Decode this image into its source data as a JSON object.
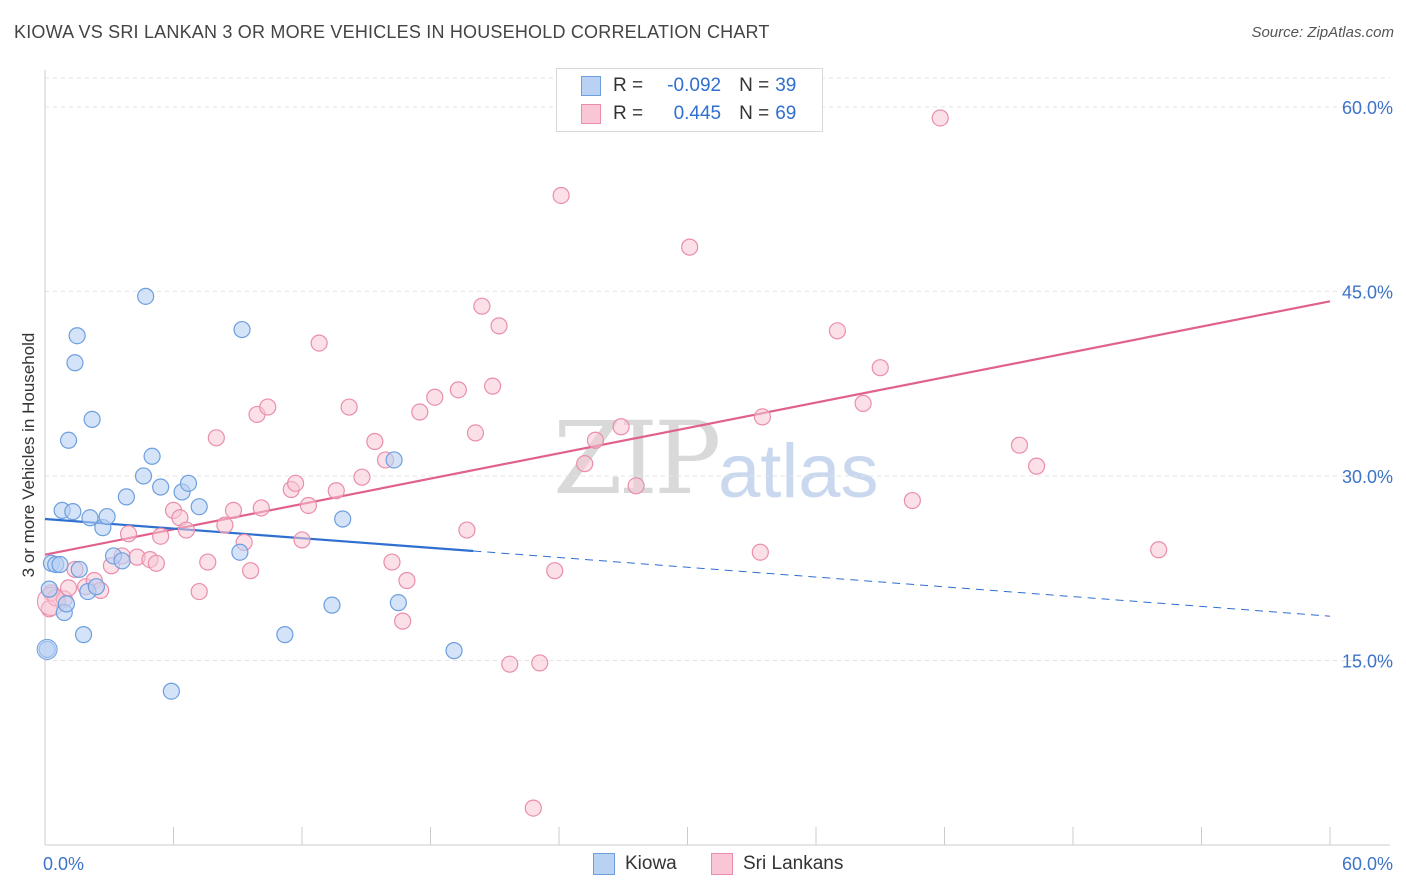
{
  "title": "KIOWA VS SRI LANKAN 3 OR MORE VEHICLES IN HOUSEHOLD CORRELATION CHART",
  "source": "Source: ZipAtlas.com",
  "watermark": {
    "zip": "ZIP",
    "atlas": "atlas"
  },
  "legend": {
    "r_label": "R =",
    "n_label": "N =",
    "kiowa": {
      "r": "-0.092",
      "n": "39"
    },
    "srilankan": {
      "r": "0.445",
      "n": "69"
    }
  },
  "bottom_legend": {
    "kiowa": "Kiowa",
    "srilankan": "Sri Lankans"
  },
  "colors": {
    "kiowa_fill": "#b9d1f3",
    "kiowa_stroke": "#6d9fdf",
    "kiowa_line": "#2e6fd0",
    "sri_fill": "#f8c6d5",
    "sri_stroke": "#ea8eab",
    "sri_line": "#e0628b",
    "axis_text": "#3d73c9"
  },
  "chart_data": {
    "type": "scatter",
    "title": "KIOWA VS SRI LANKAN 3 OR MORE VEHICLES IN HOUSEHOLD CORRELATION CHART",
    "xlabel": "",
    "ylabel": "3 or more Vehicles in Household",
    "xlim": [
      0,
      60
    ],
    "ylim": [
      0,
      63
    ],
    "x_tick_labels": [
      "0.0%",
      "60.0%"
    ],
    "y_ticks": [
      15,
      30,
      45,
      60
    ],
    "y_tick_labels": [
      "15.0%",
      "30.0%",
      "45.0%",
      "60.0%"
    ],
    "series": [
      {
        "name": "Kiowa",
        "r": -0.092,
        "n": 39,
        "points": [
          [
            0.1,
            15.9
          ],
          [
            0.2,
            20.8
          ],
          [
            0.3,
            22.9
          ],
          [
            0.5,
            22.8
          ],
          [
            0.7,
            22.8
          ],
          [
            0.8,
            27.2
          ],
          [
            0.9,
            18.9
          ],
          [
            1.0,
            19.6
          ],
          [
            1.1,
            32.9
          ],
          [
            1.3,
            27.1
          ],
          [
            1.4,
            39.2
          ],
          [
            1.5,
            41.4
          ],
          [
            1.6,
            22.4
          ],
          [
            1.8,
            17.1
          ],
          [
            2.0,
            20.6
          ],
          [
            2.1,
            26.6
          ],
          [
            2.2,
            34.6
          ],
          [
            2.4,
            21.0
          ],
          [
            2.7,
            25.8
          ],
          [
            2.9,
            26.7
          ],
          [
            3.2,
            23.5
          ],
          [
            3.6,
            23.1
          ],
          [
            3.8,
            28.3
          ],
          [
            4.6,
            30.0
          ],
          [
            4.7,
            44.6
          ],
          [
            5.0,
            31.6
          ],
          [
            5.4,
            29.1
          ],
          [
            5.9,
            12.5
          ],
          [
            6.4,
            28.7
          ],
          [
            6.7,
            29.4
          ],
          [
            7.2,
            27.5
          ],
          [
            9.1,
            23.8
          ],
          [
            9.2,
            41.9
          ],
          [
            11.2,
            17.1
          ],
          [
            13.4,
            19.5
          ],
          [
            13.9,
            26.5
          ],
          [
            16.3,
            31.3
          ],
          [
            16.5,
            19.7
          ],
          [
            19.1,
            15.8
          ]
        ],
        "trend": {
          "x1": 0,
          "y1": 26.5,
          "x2": 20,
          "y2": 23.9,
          "dash_to_x": 60,
          "dash_to_y": 18.6
        }
      },
      {
        "name": "Sri Lankans",
        "r": 0.445,
        "n": 69,
        "points": [
          [
            0.2,
            19.2
          ],
          [
            0.3,
            20.5
          ],
          [
            0.5,
            20.1
          ],
          [
            0.9,
            20.0
          ],
          [
            1.1,
            20.9
          ],
          [
            1.4,
            22.4
          ],
          [
            1.9,
            21.0
          ],
          [
            2.3,
            21.5
          ],
          [
            2.6,
            20.7
          ],
          [
            3.1,
            22.7
          ],
          [
            3.6,
            23.5
          ],
          [
            3.9,
            25.3
          ],
          [
            4.3,
            23.4
          ],
          [
            4.9,
            23.2
          ],
          [
            5.2,
            22.9
          ],
          [
            5.4,
            25.1
          ],
          [
            6.0,
            27.2
          ],
          [
            6.3,
            26.6
          ],
          [
            6.6,
            25.6
          ],
          [
            7.2,
            20.6
          ],
          [
            7.6,
            23.0
          ],
          [
            8.0,
            33.1
          ],
          [
            8.4,
            26.0
          ],
          [
            8.8,
            27.2
          ],
          [
            9.3,
            24.6
          ],
          [
            9.6,
            22.3
          ],
          [
            9.9,
            35.0
          ],
          [
            10.1,
            27.4
          ],
          [
            10.4,
            35.6
          ],
          [
            11.5,
            28.9
          ],
          [
            11.7,
            29.4
          ],
          [
            12.0,
            24.8
          ],
          [
            12.3,
            27.6
          ],
          [
            12.8,
            40.8
          ],
          [
            13.6,
            28.8
          ],
          [
            14.2,
            35.6
          ],
          [
            14.8,
            29.9
          ],
          [
            15.4,
            32.8
          ],
          [
            15.9,
            31.3
          ],
          [
            16.2,
            23.0
          ],
          [
            16.7,
            18.2
          ],
          [
            16.9,
            21.5
          ],
          [
            17.5,
            35.2
          ],
          [
            18.2,
            36.4
          ],
          [
            19.3,
            37.0
          ],
          [
            19.7,
            25.6
          ],
          [
            20.1,
            33.5
          ],
          [
            20.4,
            43.8
          ],
          [
            20.9,
            37.3
          ],
          [
            21.2,
            42.2
          ],
          [
            21.7,
            14.7
          ],
          [
            22.8,
            3.0
          ],
          [
            23.1,
            14.8
          ],
          [
            23.8,
            22.3
          ],
          [
            24.1,
            52.8
          ],
          [
            25.2,
            31.0
          ],
          [
            25.7,
            32.9
          ],
          [
            26.9,
            34.0
          ],
          [
            27.6,
            29.2
          ],
          [
            30.1,
            48.6
          ],
          [
            33.4,
            23.8
          ],
          [
            33.5,
            34.8
          ],
          [
            37.0,
            41.8
          ],
          [
            38.2,
            35.9
          ],
          [
            39.0,
            38.8
          ],
          [
            40.5,
            28.0
          ],
          [
            41.8,
            59.1
          ],
          [
            45.5,
            32.5
          ],
          [
            46.3,
            30.8
          ],
          [
            52.0,
            24.0
          ]
        ],
        "trend": {
          "x1": 0,
          "y1": 23.6,
          "x2": 60,
          "y2": 44.2
        }
      }
    ]
  }
}
